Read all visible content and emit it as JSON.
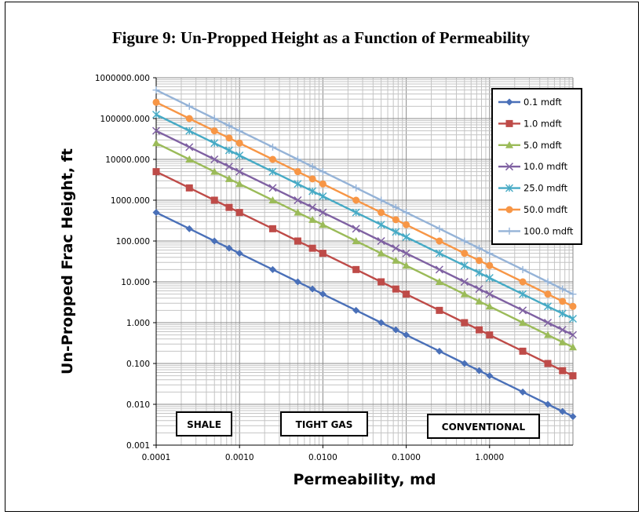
{
  "figure": {
    "title": "Figure 9: Un-Propped Height as a Function of Permeability"
  },
  "chart_data": {
    "type": "line",
    "title": "Figure 9: Un-Propped Height as a Function of Permeability",
    "xlabel": "Permeability, md",
    "ylabel": "Un-Propped Frac Height, ft",
    "x_scale": "log",
    "y_scale": "log",
    "xlim": [
      0.0001,
      10
    ],
    "ylim": [
      0.001,
      1000000
    ],
    "grid": true,
    "legend_position": "top-right",
    "x_tick_labels": [
      "0.0001",
      "0.0010",
      "0.0100",
      "0.1000",
      "1.0000"
    ],
    "y_tick_labels": [
      "0.001",
      "0.010",
      "0.100",
      "1.000",
      "10.000",
      "100.000",
      "1000.000",
      "10000.000",
      "100000.000",
      "1000000.000"
    ],
    "x": [
      0.0001,
      0.00025,
      0.0005,
      0.00075,
      0.001,
      0.0025,
      0.005,
      0.0075,
      0.01,
      0.025,
      0.05,
      0.075,
      0.1,
      0.25,
      0.5,
      0.75,
      1,
      2.5,
      5,
      7.5,
      10
    ],
    "series": [
      {
        "name": "0.1 mdft",
        "color": "#4a70b8",
        "marker": "diamond",
        "values": [
          500,
          200,
          100,
          66.7,
          50,
          20,
          10,
          6.67,
          5,
          2,
          1,
          0.667,
          0.5,
          0.2,
          0.1,
          0.0667,
          0.05,
          0.02,
          0.01,
          0.00667,
          0.005
        ]
      },
      {
        "name": "1.0 mdft",
        "color": "#be4b48",
        "marker": "square",
        "values": [
          5000,
          2000,
          1000,
          667,
          500,
          200,
          100,
          66.7,
          50,
          20,
          10,
          6.67,
          5,
          2,
          1,
          0.667,
          0.5,
          0.2,
          0.1,
          0.0667,
          0.05
        ]
      },
      {
        "name": "5.0 mdft",
        "color": "#9bbb59",
        "marker": "triangle",
        "values": [
          25000,
          10000,
          5000,
          3333,
          2500,
          1000,
          500,
          333,
          250,
          100,
          50,
          33.3,
          25,
          10,
          5,
          3.33,
          2.5,
          1,
          0.5,
          0.333,
          0.25
        ]
      },
      {
        "name": "10.0 mdft",
        "color": "#7f61a2",
        "marker": "x",
        "values": [
          50000,
          20000,
          10000,
          6667,
          5000,
          2000,
          1000,
          667,
          500,
          200,
          100,
          66.7,
          50,
          20,
          10,
          6.67,
          5,
          2,
          1,
          0.667,
          0.5
        ]
      },
      {
        "name": "25.0 mdft",
        "color": "#46aac5",
        "marker": "star",
        "values": [
          125000,
          50000,
          25000,
          16667,
          12500,
          5000,
          2500,
          1667,
          1250,
          500,
          250,
          167,
          125,
          50,
          25,
          16.7,
          12.5,
          5,
          2.5,
          1.67,
          1.25
        ]
      },
      {
        "name": "50.0 mdft",
        "color": "#f79646",
        "marker": "circle",
        "values": [
          250000,
          100000,
          50000,
          33333,
          25000,
          10000,
          5000,
          3333,
          2500,
          1000,
          500,
          333,
          250,
          100,
          50,
          33.3,
          25,
          10,
          5,
          3.33,
          2.5
        ]
      },
      {
        "name": "100.0 mdft",
        "color": "#95b3d7",
        "marker": "plus",
        "values": [
          500000,
          200000,
          100000,
          66667,
          50000,
          20000,
          10000,
          6667,
          5000,
          2000,
          1000,
          667,
          500,
          200,
          100,
          66.7,
          50,
          20,
          10,
          6.67,
          5
        ]
      }
    ],
    "annotations": [
      {
        "text": "SHALE"
      },
      {
        "text": "TIGHT GAS"
      },
      {
        "text": "CONVENTIONAL"
      }
    ]
  }
}
